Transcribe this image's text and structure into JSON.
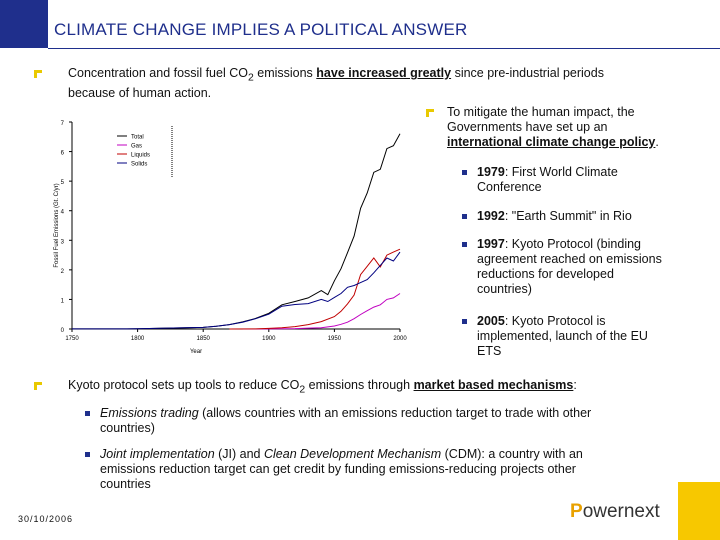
{
  "header": {
    "title": "CLIMATE CHANGE IMPLIES A POLITICAL ANSWER"
  },
  "intro": {
    "pre": "Concentration and fossil fuel CO",
    "sub": "2",
    "mid": " emissions ",
    "emph": "have increased greatly",
    "post": " since pre-industrial periods",
    "line2": "because of human action."
  },
  "mitigate": {
    "line1": "To mitigate the human impact, the",
    "line2": "Governments have set up an",
    "emph": "international climate change policy",
    "end": "."
  },
  "milestones": [
    {
      "year": "1979",
      "text1": ": First World Climate",
      "text2": "Conference",
      "text3": "",
      "text4": ""
    },
    {
      "year": "1992",
      "text1": ": \"Earth Summit\" in Rio",
      "text2": "",
      "text3": "",
      "text4": ""
    },
    {
      "year": "1997",
      "text1": ": Kyoto Protocol (binding",
      "text2": "agreement reached on emissions",
      "text3": "reductions for developed",
      "text4": "countries)"
    },
    {
      "year": "2005",
      "text1": ":  Kyoto Protocol is",
      "text2": "implemented, launch of the EU",
      "text3": "ETS",
      "text4": ""
    }
  ],
  "kyoto": {
    "pre": "Kyoto protocol sets up tools to reduce CO",
    "sub": "2",
    "mid": " emissions through ",
    "emph": "market based mechanisms",
    "end": ":"
  },
  "tools": [
    {
      "em": "Emissions trading",
      "text": " (allows countries with an emissions reduction target to trade with other",
      "line2": "countries)"
    },
    {
      "em": "Joint implementation",
      "text_a": " (JI) and ",
      "em2": "Clean Development Mechanism",
      "text_b": " (CDM): a country with an",
      "line2": "emissions reduction target can get credit by funding emissions-reducing projects other",
      "line3": "countries"
    }
  ],
  "footer": {
    "date": "30/10/2006",
    "logo_p": "P",
    "logo_rest": "owernext"
  },
  "chart_data": {
    "type": "line",
    "title": "",
    "xlabel": "Year",
    "ylabel": "Fossil Fuel Emissions (Gt. C/yr)",
    "xlim": [
      1750,
      2000
    ],
    "ylim": [
      0,
      7
    ],
    "xticks": [
      "1750",
      "1800",
      "1850",
      "1900",
      "1950",
      "2000"
    ],
    "yticks": [
      "0",
      "1",
      "2",
      "3",
      "4",
      "5",
      "6",
      "7"
    ],
    "legend": "top-left",
    "series": [
      {
        "name": "Total",
        "color": "#000000",
        "x": [
          1750,
          1800,
          1850,
          1860,
          1870,
          1880,
          1890,
          1900,
          1910,
          1920,
          1930,
          1940,
          1945,
          1950,
          1955,
          1960,
          1965,
          1970,
          1975,
          1980,
          1985,
          1990,
          1995,
          2000
        ],
        "y": [
          0.003,
          0.008,
          0.054,
          0.09,
          0.15,
          0.24,
          0.36,
          0.53,
          0.82,
          0.93,
          1.05,
          1.3,
          1.16,
          1.63,
          2.04,
          2.58,
          3.14,
          4.08,
          4.6,
          5.3,
          5.4,
          6.1,
          6.2,
          6.6
        ]
      },
      {
        "name": "Gas",
        "color": "#c000c0",
        "x": [
          1880,
          1900,
          1910,
          1920,
          1930,
          1940,
          1950,
          1955,
          1960,
          1965,
          1970,
          1975,
          1980,
          1985,
          1990,
          1995,
          2000
        ],
        "y": [
          0,
          0.003,
          0.01,
          0.015,
          0.03,
          0.04,
          0.1,
          0.16,
          0.23,
          0.35,
          0.49,
          0.62,
          0.74,
          0.82,
          1.0,
          1.05,
          1.2
        ]
      },
      {
        "name": "Liquids",
        "color": "#c00000",
        "x": [
          1870,
          1890,
          1900,
          1910,
          1920,
          1930,
          1940,
          1950,
          1955,
          1960,
          1965,
          1970,
          1975,
          1980,
          1985,
          1990,
          1995,
          2000
        ],
        "y": [
          0,
          0.005,
          0.02,
          0.04,
          0.08,
          0.15,
          0.25,
          0.42,
          0.6,
          0.85,
          1.15,
          1.84,
          2.12,
          2.4,
          2.1,
          2.5,
          2.6,
          2.7
        ]
      },
      {
        "name": "Solids",
        "color": "#000080",
        "x": [
          1750,
          1800,
          1850,
          1860,
          1870,
          1880,
          1890,
          1900,
          1910,
          1920,
          1930,
          1940,
          1945,
          1950,
          1955,
          1960,
          1965,
          1970,
          1975,
          1980,
          1985,
          1990,
          1995,
          2000
        ],
        "y": [
          0.003,
          0.008,
          0.054,
          0.09,
          0.15,
          0.23,
          0.35,
          0.5,
          0.77,
          0.83,
          0.86,
          1.0,
          0.93,
          1.07,
          1.2,
          1.41,
          1.47,
          1.57,
          1.67,
          1.9,
          2.15,
          2.4,
          2.3,
          2.6
        ]
      }
    ]
  }
}
